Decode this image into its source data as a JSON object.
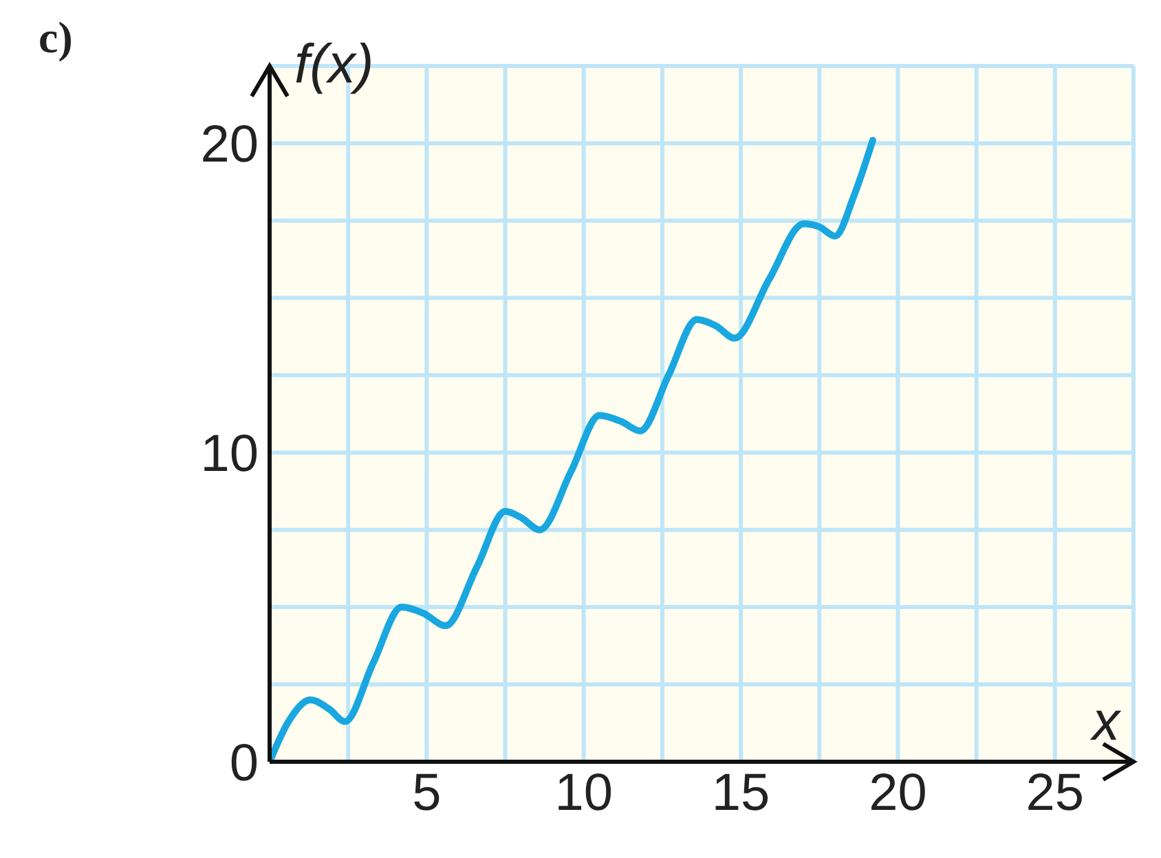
{
  "chart_data": {
    "type": "line",
    "title": "c)",
    "xlabel": "x",
    "ylabel": "f(x)",
    "x": [
      0,
      0.6,
      1.3,
      1.9,
      2.4,
      3.3,
      4.2,
      4.9,
      5.6,
      6.6,
      7.5,
      8.0,
      8.6,
      9.6,
      10.5,
      11.2,
      11.8,
      12.7,
      13.6,
      14.2,
      14.8,
      15.9,
      17.0,
      17.5,
      18.0,
      18.6,
      19.2
    ],
    "series": [
      {
        "color": "#1aa7e0",
        "values": [
          0,
          1.3,
          2.0,
          1.7,
          1.3,
          3.2,
          5.0,
          4.8,
          4.4,
          6.3,
          8.1,
          7.9,
          7.5,
          9.4,
          11.2,
          11.0,
          10.7,
          12.5,
          14.3,
          14.1,
          13.7,
          15.6,
          17.4,
          17.3,
          17.0,
          18.3,
          20.1
        ]
      }
    ],
    "xlim": [
      0,
      27.5
    ],
    "ylim": [
      0,
      22.5
    ],
    "xticks": [
      {
        "value": 0,
        "label": null
      },
      {
        "value": 2.5,
        "label": null
      },
      5,
      {
        "value": 7.5,
        "label": null
      },
      10,
      {
        "value": 12.5,
        "label": null
      },
      15,
      {
        "value": 17.5,
        "label": null
      },
      20,
      {
        "value": 22.5,
        "label": null
      },
      25,
      {
        "value": 27.5,
        "label": null
      }
    ],
    "yticks": [
      0,
      {
        "value": 2.5,
        "label": null
      },
      {
        "value": 5,
        "label": null
      },
      {
        "value": 7.5,
        "label": null
      },
      10,
      {
        "value": 12.5,
        "label": null
      },
      {
        "value": 15,
        "label": null
      },
      {
        "value": 17.5,
        "label": null
      },
      20,
      {
        "value": 22.5,
        "label": null
      }
    ],
    "grid": true,
    "marker": "none",
    "line_style": "solid"
  }
}
